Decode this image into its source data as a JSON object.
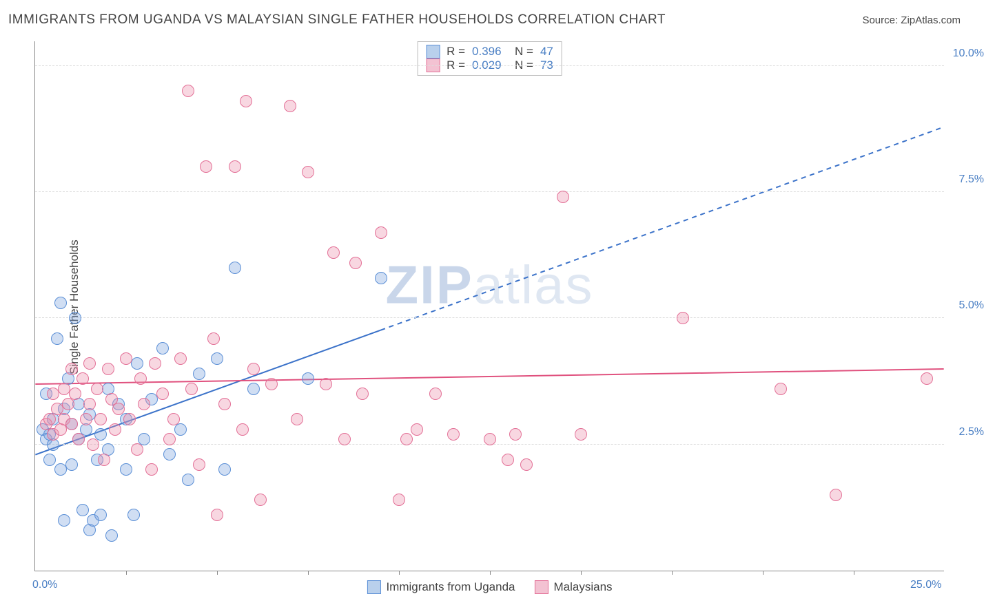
{
  "header": {
    "title": "IMMIGRANTS FROM UGANDA VS MALAYSIAN SINGLE FATHER HOUSEHOLDS CORRELATION CHART",
    "source": "Source: ZipAtlas.com"
  },
  "chart": {
    "type": "scatter",
    "ylabel": "Single Father Households",
    "xlim": [
      0,
      25
    ],
    "ylim": [
      0,
      10.5
    ],
    "xticks": [
      0,
      25
    ],
    "xtick_labels": [
      "0.0%",
      "25.0%"
    ],
    "xminor_ticks": [
      2.5,
      5,
      7.5,
      10,
      12.5,
      15,
      17.5,
      20,
      22.5
    ],
    "yticks": [
      2.5,
      5.0,
      7.5,
      10.0
    ],
    "ytick_labels": [
      "2.5%",
      "5.0%",
      "7.5%",
      "10.0%"
    ],
    "grid_color": "#dddddd",
    "background_color": "#ffffff",
    "watermark": "ZIPatlas",
    "series": [
      {
        "name": "Immigrants from Uganda",
        "marker_fill": "rgba(120,160,220,0.35)",
        "marker_stroke": "#5b8fd6",
        "swatch_fill": "#b9d0ec",
        "swatch_stroke": "#5b8fd6",
        "R": "0.396",
        "N": "47",
        "trend": {
          "x1": 0,
          "y1": 2.3,
          "x2": 25,
          "y2": 8.8,
          "solid_until_x": 9.5,
          "color": "#3b72c9",
          "width": 2
        },
        "points": [
          [
            0.2,
            2.8
          ],
          [
            0.3,
            3.5
          ],
          [
            0.3,
            2.6
          ],
          [
            0.4,
            2.7
          ],
          [
            0.4,
            2.2
          ],
          [
            0.5,
            3.0
          ],
          [
            0.5,
            2.5
          ],
          [
            0.6,
            4.6
          ],
          [
            0.7,
            5.3
          ],
          [
            0.7,
            2.0
          ],
          [
            0.8,
            3.2
          ],
          [
            0.8,
            1.0
          ],
          [
            0.9,
            3.8
          ],
          [
            1.0,
            2.9
          ],
          [
            1.0,
            2.1
          ],
          [
            1.1,
            5.0
          ],
          [
            1.2,
            3.3
          ],
          [
            1.2,
            2.6
          ],
          [
            1.3,
            1.2
          ],
          [
            1.4,
            2.8
          ],
          [
            1.5,
            0.8
          ],
          [
            1.5,
            3.1
          ],
          [
            1.6,
            1.0
          ],
          [
            1.7,
            2.2
          ],
          [
            1.8,
            2.7
          ],
          [
            1.8,
            1.1
          ],
          [
            2.0,
            3.6
          ],
          [
            2.0,
            2.4
          ],
          [
            2.1,
            0.7
          ],
          [
            2.3,
            3.3
          ],
          [
            2.5,
            2.0
          ],
          [
            2.5,
            3.0
          ],
          [
            2.7,
            1.1
          ],
          [
            2.8,
            4.1
          ],
          [
            3.0,
            2.6
          ],
          [
            3.2,
            3.4
          ],
          [
            3.5,
            4.4
          ],
          [
            3.7,
            2.3
          ],
          [
            4.0,
            2.8
          ],
          [
            4.2,
            1.8
          ],
          [
            4.5,
            3.9
          ],
          [
            5.0,
            4.2
          ],
          [
            5.2,
            2.0
          ],
          [
            5.5,
            6.0
          ],
          [
            6.0,
            3.6
          ],
          [
            7.5,
            3.8
          ],
          [
            9.5,
            5.8
          ]
        ]
      },
      {
        "name": "Malaysians",
        "marker_fill": "rgba(235,140,170,0.35)",
        "marker_stroke": "#e36f96",
        "swatch_fill": "#f3c2d2",
        "swatch_stroke": "#e36f96",
        "R": "0.029",
        "N": "73",
        "trend": {
          "x1": 0,
          "y1": 3.7,
          "x2": 25,
          "y2": 4.0,
          "solid_until_x": 25,
          "color": "#e0517e",
          "width": 2
        },
        "points": [
          [
            0.3,
            2.9
          ],
          [
            0.4,
            3.0
          ],
          [
            0.5,
            3.5
          ],
          [
            0.5,
            2.7
          ],
          [
            0.6,
            3.2
          ],
          [
            0.7,
            2.8
          ],
          [
            0.8,
            3.0
          ],
          [
            0.8,
            3.6
          ],
          [
            0.9,
            3.3
          ],
          [
            1.0,
            4.0
          ],
          [
            1.0,
            2.9
          ],
          [
            1.1,
            3.5
          ],
          [
            1.2,
            2.6
          ],
          [
            1.3,
            3.8
          ],
          [
            1.4,
            3.0
          ],
          [
            1.5,
            4.1
          ],
          [
            1.5,
            3.3
          ],
          [
            1.6,
            2.5
          ],
          [
            1.7,
            3.6
          ],
          [
            1.8,
            3.0
          ],
          [
            1.9,
            2.2
          ],
          [
            2.0,
            4.0
          ],
          [
            2.1,
            3.4
          ],
          [
            2.2,
            2.8
          ],
          [
            2.3,
            3.2
          ],
          [
            2.5,
            4.2
          ],
          [
            2.6,
            3.0
          ],
          [
            2.8,
            2.4
          ],
          [
            2.9,
            3.8
          ],
          [
            3.0,
            3.3
          ],
          [
            3.2,
            2.0
          ],
          [
            3.3,
            4.1
          ],
          [
            3.5,
            3.5
          ],
          [
            3.7,
            2.6
          ],
          [
            3.8,
            3.0
          ],
          [
            4.0,
            4.2
          ],
          [
            4.2,
            9.5
          ],
          [
            4.3,
            3.6
          ],
          [
            4.5,
            2.1
          ],
          [
            4.7,
            8.0
          ],
          [
            4.9,
            4.6
          ],
          [
            5.0,
            1.1
          ],
          [
            5.2,
            3.3
          ],
          [
            5.5,
            8.0
          ],
          [
            5.7,
            2.8
          ],
          [
            5.8,
            9.3
          ],
          [
            6.0,
            4.0
          ],
          [
            6.2,
            1.4
          ],
          [
            6.5,
            3.7
          ],
          [
            7.0,
            9.2
          ],
          [
            7.2,
            3.0
          ],
          [
            7.5,
            7.9
          ],
          [
            8.0,
            3.7
          ],
          [
            8.2,
            6.3
          ],
          [
            8.5,
            2.6
          ],
          [
            8.8,
            6.1
          ],
          [
            9.0,
            3.5
          ],
          [
            9.5,
            6.7
          ],
          [
            10.0,
            1.4
          ],
          [
            10.2,
            2.6
          ],
          [
            10.5,
            2.8
          ],
          [
            11.0,
            3.5
          ],
          [
            11.5,
            2.7
          ],
          [
            12.5,
            2.6
          ],
          [
            13.0,
            2.2
          ],
          [
            13.2,
            2.7
          ],
          [
            13.5,
            2.1
          ],
          [
            14.5,
            7.4
          ],
          [
            15.0,
            2.7
          ],
          [
            17.8,
            5.0
          ],
          [
            20.5,
            3.6
          ],
          [
            22.0,
            1.5
          ],
          [
            24.5,
            3.8
          ]
        ]
      }
    ],
    "bottom_legend": [
      "Immigrants from Uganda",
      "Malaysians"
    ]
  }
}
